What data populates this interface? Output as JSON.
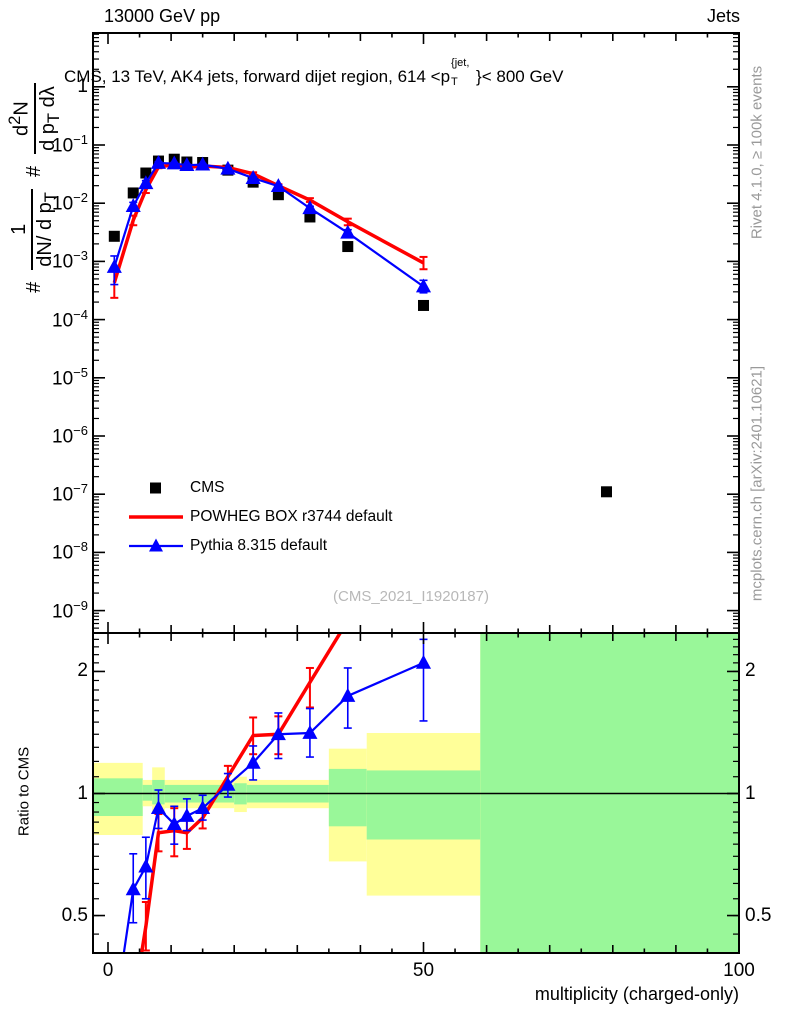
{
  "header": {
    "left": "13000 GeV pp",
    "right": "Jets"
  },
  "panel_title": {
    "prefix": "CMS, 13 TeV, AK4 jets, forward dijet region, 614 <p",
    "sup": "{jet,",
    "sub": "T",
    "suffix": "}< 800 GeV"
  },
  "sidebar_right": {
    "top": "Rivet 4.1.0, ≥ 100k events",
    "bottom": "mcplots.cern.ch [arXiv:2401.10621]"
  },
  "watermark": "(CMS_2021_I1920187)",
  "y_axis_label": {
    "hash1": "#",
    "frac1_num": "1",
    "frac1_den_main": "dN/ d p",
    "frac1_den_sub": "T",
    "hash2": "#",
    "frac2_num_main": "d",
    "frac2_num_sup": "2",
    "frac2_num_rest": "N",
    "frac2_den_main": "d p",
    "frac2_den_sub": "T",
    "frac2_den_rest": " dλ"
  },
  "x_axis": {
    "title": "multiplicity (charged-only)",
    "tick_labels": [
      "0",
      "50",
      "100"
    ],
    "tick_values": [
      0,
      50,
      100
    ]
  },
  "main_y_axis": {
    "top_label": "1",
    "exponent_base": "10",
    "exponents": [
      -1,
      -2,
      -3,
      -4,
      -5,
      -6,
      -7,
      -8,
      -9
    ]
  },
  "ratio_y_axis": {
    "title": "Ratio to CMS",
    "tick_labels": [
      "2",
      "1",
      "0.5"
    ],
    "tick_values": [
      2,
      1,
      0.5
    ]
  },
  "legend": [
    {
      "label": "CMS",
      "marker": "square",
      "color": "#000000"
    },
    {
      "label": "POWHEG BOX r3744 default",
      "marker": "line",
      "color": "#ff0000"
    },
    {
      "label": "Pythia 8.315 default",
      "marker": "line-triangle",
      "color": "#0000ff"
    }
  ],
  "colors": {
    "data": "#000000",
    "powheg": "#ff0000",
    "pythia": "#0000ff",
    "band_green": "#99f799",
    "band_yellow": "#ffff99",
    "frame": "#000000",
    "gray_text": "#9a9a9a",
    "watermark": "#b8b8b8"
  },
  "chart_data": [
    {
      "id": "main",
      "type": "line",
      "y_scale": "log",
      "xlim": [
        -2.4,
        100
      ],
      "ylim": [
        4e-10,
        8.4
      ],
      "x": [
        1,
        4,
        6,
        8,
        10.5,
        12.5,
        15,
        19,
        23,
        27,
        32,
        38,
        50,
        79
      ],
      "series": [
        {
          "name": "CMS",
          "marker": "square",
          "color": "#000000",
          "y": [
            0.0027,
            0.015,
            0.033,
            0.053,
            0.057,
            0.051,
            0.05,
            0.037,
            0.023,
            0.014,
            0.0058,
            0.0018,
            0.000175,
            1.1e-07
          ]
        },
        {
          "name": "POWHEG BOX r3744 default",
          "marker": "none",
          "color": "#ff0000",
          "y": [
            0.00043,
            0.0051,
            0.017,
            0.042,
            0.046,
            0.041,
            0.0435,
            0.041,
            0.032,
            0.02,
            0.0113,
            0.0048,
            0.00094
          ],
          "err": [
            [
              0.55,
              1.6
            ],
            [
              0.82,
              1.2
            ],
            [
              0.88,
              1.13
            ],
            [
              0.95,
              1.05
            ],
            [
              0.95,
              1.05
            ],
            [
              0.96,
              1.04
            ],
            [
              0.96,
              1.04
            ],
            [
              0.96,
              1.04
            ],
            [
              0.95,
              1.06
            ],
            [
              0.94,
              1.06
            ],
            [
              0.93,
              1.08
            ],
            [
              0.87,
              1.13
            ],
            [
              0.78,
              1.27
            ]
          ]
        },
        {
          "name": "Pythia 8.315 default",
          "marker": "triangle",
          "color": "#0000ff",
          "y": [
            0.0008,
            0.0089,
            0.022,
            0.049,
            0.048,
            0.045,
            0.046,
            0.039,
            0.027,
            0.0196,
            0.0082,
            0.0031,
            0.00037
          ],
          "err": [
            [
              0.5,
              1.55
            ],
            [
              0.86,
              1.16
            ],
            [
              0.9,
              1.11
            ],
            [
              0.96,
              1.05
            ],
            [
              0.96,
              1.04
            ],
            [
              0.96,
              1.04
            ],
            [
              0.97,
              1.04
            ],
            [
              0.96,
              1.04
            ],
            [
              0.95,
              1.05
            ],
            [
              0.94,
              1.06
            ],
            [
              0.92,
              1.08
            ],
            [
              0.88,
              1.13
            ],
            [
              0.78,
              1.28
            ]
          ]
        }
      ]
    },
    {
      "id": "ratio",
      "type": "line",
      "y_scale": "log",
      "ylabel": "Ratio to CMS",
      "xlim": [
        -2.4,
        100
      ],
      "ylim": [
        0.4,
        2.51
      ],
      "reference_line": 1,
      "bands": [
        {
          "x0": -2.4,
          "x1": 5.5,
          "yellow": [
            0.79,
            1.19
          ],
          "green": [
            0.88,
            1.09
          ]
        },
        {
          "x0": 5.5,
          "x1": 7,
          "yellow": [
            0.93,
            1.08
          ],
          "green": [
            0.96,
            1.05
          ]
        },
        {
          "x0": 7,
          "x1": 9,
          "yellow": [
            0.9,
            1.16
          ],
          "green": [
            0.94,
            1.08
          ]
        },
        {
          "x0": 9,
          "x1": 20,
          "yellow": [
            0.92,
            1.08
          ],
          "green": [
            0.95,
            1.05
          ]
        },
        {
          "x0": 20,
          "x1": 22,
          "yellow": [
            0.9,
            1.1
          ],
          "green": [
            0.94,
            1.06
          ]
        },
        {
          "x0": 22,
          "x1": 35,
          "yellow": [
            0.92,
            1.08
          ],
          "green": [
            0.95,
            1.05
          ]
        },
        {
          "x0": 35,
          "x1": 41,
          "yellow": [
            0.68,
            1.29
          ],
          "green": [
            0.83,
            1.15
          ]
        },
        {
          "x0": 41,
          "x1": 59,
          "yellow": [
            0.56,
            1.41
          ],
          "green": [
            0.77,
            1.14
          ]
        },
        {
          "x0": 59,
          "x1": 100,
          "yellow": [
            0.4,
            2.51
          ],
          "green": [
            0.4,
            2.51
          ]
        }
      ],
      "series": [
        {
          "name": "POWHEG BOX r3744 default",
          "marker": "none",
          "color": "#ff0000",
          "x": [
            4,
            6,
            8,
            10.5,
            12.5,
            15,
            19,
            23,
            27,
            32,
            38
          ],
          "y": [
            0.3,
            0.47,
            0.8,
            0.81,
            0.8,
            0.87,
            1.1,
            1.39,
            1.4,
            1.88,
            2.67
          ],
          "err": [
            null,
            [
              0.41,
              0.54
            ],
            [
              0.72,
              0.89
            ],
            [
              0.7,
              0.92
            ],
            [
              0.73,
              0.87
            ],
            [
              0.82,
              0.92
            ],
            [
              1.04,
              1.17
            ],
            [
              1.25,
              1.54
            ],
            [
              1.25,
              1.55
            ],
            [
              1.63,
              2.04
            ],
            null
          ]
        },
        {
          "name": "Pythia 8.315 default",
          "marker": "triangle",
          "color": "#0000ff",
          "x": [
            1,
            4,
            6,
            8,
            10.5,
            12.5,
            15,
            19,
            23,
            27,
            32,
            38,
            50
          ],
          "y": [
            0.28,
            0.58,
            0.66,
            0.92,
            0.84,
            0.88,
            0.92,
            1.05,
            1.19,
            1.4,
            1.41,
            1.74,
            2.1
          ],
          "err": [
            null,
            [
              0.48,
              0.71
            ],
            [
              0.55,
              0.78
            ],
            [
              0.82,
              1.02
            ],
            [
              0.75,
              0.93
            ],
            [
              0.81,
              0.97
            ],
            [
              0.86,
              0.99
            ],
            [
              0.98,
              1.12
            ],
            [
              1.08,
              1.31
            ],
            [
              1.22,
              1.58
            ],
            [
              1.23,
              1.62
            ],
            [
              1.45,
              2.04
            ],
            [
              1.51,
              2.4
            ]
          ]
        }
      ]
    }
  ]
}
